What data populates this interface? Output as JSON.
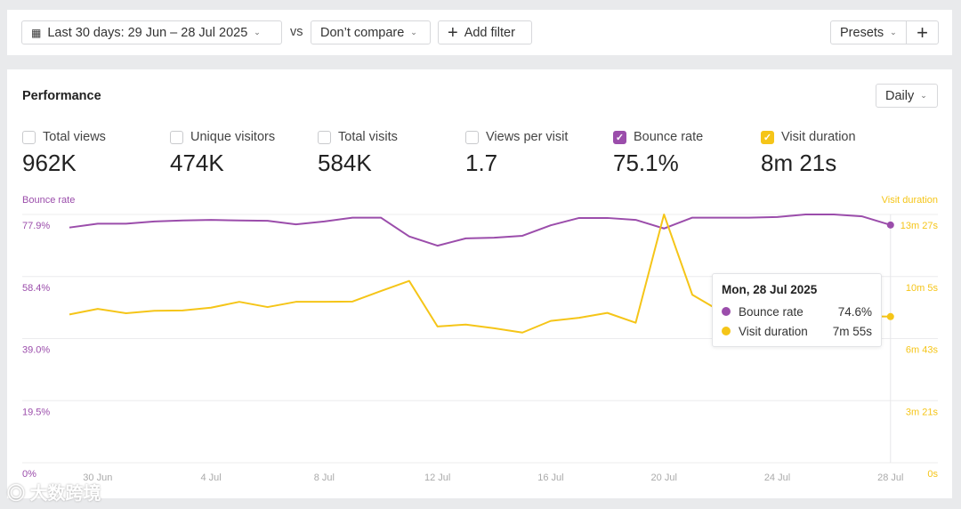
{
  "toolbar": {
    "date_range": "Last 30 days: 29 Jun – 28 Jul 2025",
    "vs": "vs",
    "compare": "Don’t compare",
    "add_filter": "Add filter",
    "presets": "Presets",
    "plus": "+"
  },
  "performance": {
    "title": "Performance",
    "interval": "Daily",
    "metrics": [
      {
        "label": "Total views",
        "value": "962K",
        "checked": false
      },
      {
        "label": "Unique visitors",
        "value": "474K",
        "checked": false
      },
      {
        "label": "Total visits",
        "value": "584K",
        "checked": false
      },
      {
        "label": "Views per visit",
        "value": "1.7",
        "checked": false
      },
      {
        "label": "Bounce rate",
        "value": "75.1%",
        "checked": true,
        "color": "#9b4dab"
      },
      {
        "label": "Visit duration",
        "value": "8m 21s",
        "checked": true,
        "color": "#f5c518"
      }
    ]
  },
  "tooltip": {
    "title": "Mon, 28 Jul 2025",
    "rows": [
      {
        "label": "Bounce rate",
        "value": "74.6%",
        "color": "#9b4dab"
      },
      {
        "label": "Visit duration",
        "value": "7m 55s",
        "color": "#f5c518"
      }
    ]
  },
  "watermark": "大数跨境",
  "chart_data": {
    "type": "line",
    "left_axis_label": "Bounce rate",
    "right_axis_label": "Visit duration",
    "left_ticks": [
      "0%",
      "19.5%",
      "39.0%",
      "58.4%",
      "77.9%"
    ],
    "right_ticks": [
      "0s",
      "3m 21s",
      "6m 43s",
      "10m 5s",
      "13m 27s"
    ],
    "ylim_left": [
      0,
      77.9
    ],
    "ylim_right_seconds": [
      0,
      807
    ],
    "x_tick_labels": [
      "30 Jun",
      "4 Jul",
      "8 Jul",
      "12 Jul",
      "16 Jul",
      "20 Jul",
      "24 Jul",
      "28 Jul"
    ],
    "x": [
      "29 Jun",
      "30 Jun",
      "1 Jul",
      "2 Jul",
      "3 Jul",
      "4 Jul",
      "5 Jul",
      "6 Jul",
      "7 Jul",
      "8 Jul",
      "9 Jul",
      "10 Jul",
      "11 Jul",
      "12 Jul",
      "13 Jul",
      "14 Jul",
      "15 Jul",
      "16 Jul",
      "17 Jul",
      "18 Jul",
      "19 Jul",
      "20 Jul",
      "21 Jul",
      "22 Jul",
      "23 Jul",
      "24 Jul",
      "25 Jul",
      "26 Jul",
      "27 Jul",
      "28 Jul"
    ],
    "grid": true,
    "series": [
      {
        "name": "Bounce rate",
        "axis": "left",
        "unit": "%",
        "color": "#9b4dab",
        "values": [
          73.8,
          75.0,
          75.0,
          75.7,
          76.0,
          76.2,
          76.0,
          75.9,
          74.8,
          75.7,
          76.9,
          76.9,
          71.0,
          68.1,
          70.4,
          70.6,
          71.2,
          74.5,
          76.8,
          76.8,
          76.2,
          73.5,
          76.9,
          76.9,
          76.9,
          77.1,
          77.9,
          77.9,
          77.3,
          74.6
        ]
      },
      {
        "name": "Visit duration",
        "axis": "right",
        "unit": "s",
        "color": "#f5c518",
        "values": [
          482,
          500,
          486,
          494,
          495,
          504,
          523,
          506,
          523,
          523,
          524,
          558,
          591,
          443,
          449,
          437,
          423,
          461,
          471,
          487,
          455,
          807,
          546,
          492,
          478,
          476,
          477,
          476,
          476,
          475
        ]
      }
    ]
  }
}
